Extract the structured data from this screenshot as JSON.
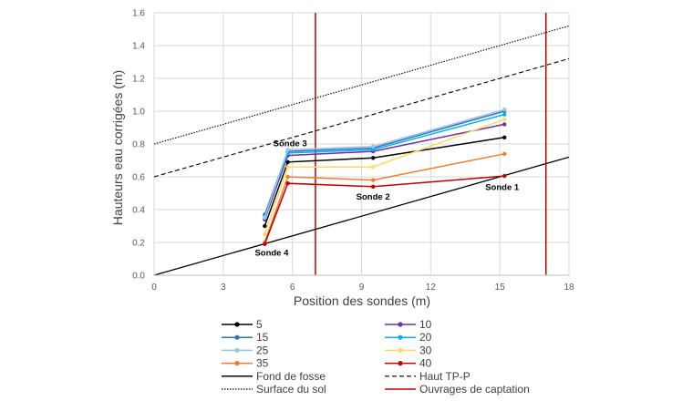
{
  "chart_data": {
    "type": "line",
    "xlabel": "Position des sondes (m)",
    "ylabel": "Hauteurs eau corrigées (m)",
    "xlim": [
      0,
      18
    ],
    "ylim": [
      0,
      1.6
    ],
    "xticks": [
      0,
      3,
      6,
      9,
      12,
      15,
      18
    ],
    "xtick_labels": [
      "0",
      "3",
      "6",
      "9",
      "12",
      "15",
      "18"
    ],
    "yticks": [
      0,
      0.2,
      0.4,
      0.6,
      0.8,
      1.0,
      1.2,
      1.4,
      1.6
    ],
    "ytick_labels": [
      "0.0",
      "0.2",
      "0.4",
      "0.6",
      "0.8",
      "1.0",
      "1.2",
      "1.4",
      "1.6"
    ],
    "grid": {
      "horizontal": true,
      "vertical": true
    },
    "legend_position": "bottom",
    "x": [
      4.8,
      5.8,
      9.5,
      15.2
    ],
    "series": [
      {
        "name": "5",
        "color": "#000000",
        "values": [
          0.3,
          0.69,
          0.715,
          0.84
        ]
      },
      {
        "name": "10",
        "color": "#7030A0",
        "values": [
          0.34,
          0.73,
          0.755,
          0.92
        ]
      },
      {
        "name": "15",
        "color": "#2E75B6",
        "values": [
          0.37,
          0.755,
          0.775,
          1.0
        ]
      },
      {
        "name": "20",
        "color": "#00B0F0",
        "values": [
          0.36,
          0.745,
          0.765,
          0.98
        ]
      },
      {
        "name": "25",
        "color": "#9DC3E6",
        "values": [
          0.35,
          0.765,
          0.785,
          1.01
        ]
      },
      {
        "name": "30",
        "color": "#FFD966",
        "values": [
          0.25,
          0.66,
          0.66,
          0.95
        ]
      },
      {
        "name": "35",
        "color": "#ED7D31",
        "values": [
          0.2,
          0.6,
          0.58,
          0.74
        ]
      },
      {
        "name": "40",
        "color": "#C00000",
        "values": [
          0.19,
          0.56,
          0.54,
          0.605
        ]
      }
    ],
    "reference_lines": [
      {
        "name": "Fond de fosse",
        "color": "#000000",
        "style": "solid",
        "x": [
          0,
          18
        ],
        "y": [
          0.0,
          0.72
        ]
      },
      {
        "name": "Haut TP-P",
        "color": "#000000",
        "style": "dashed",
        "x": [
          0,
          18
        ],
        "y": [
          0.6,
          1.32
        ]
      },
      {
        "name": "Surface du sol",
        "color": "#000000",
        "style": "dotted",
        "x": [
          0,
          18
        ],
        "y": [
          0.8,
          1.52
        ]
      }
    ],
    "vertical_lines": {
      "name": "Ouvrages de captation",
      "color": "#C00000",
      "x": [
        7,
        17
      ]
    },
    "annotations": [
      {
        "text": "Sonde 3",
        "x": 5.9,
        "y": 0.785
      },
      {
        "text": "Sonde 2",
        "x": 9.5,
        "y": 0.46
      },
      {
        "text": "Sonde 1",
        "x": 15.1,
        "y": 0.52
      },
      {
        "text": "Sonde 4",
        "x": 5.1,
        "y": 0.12
      }
    ]
  }
}
